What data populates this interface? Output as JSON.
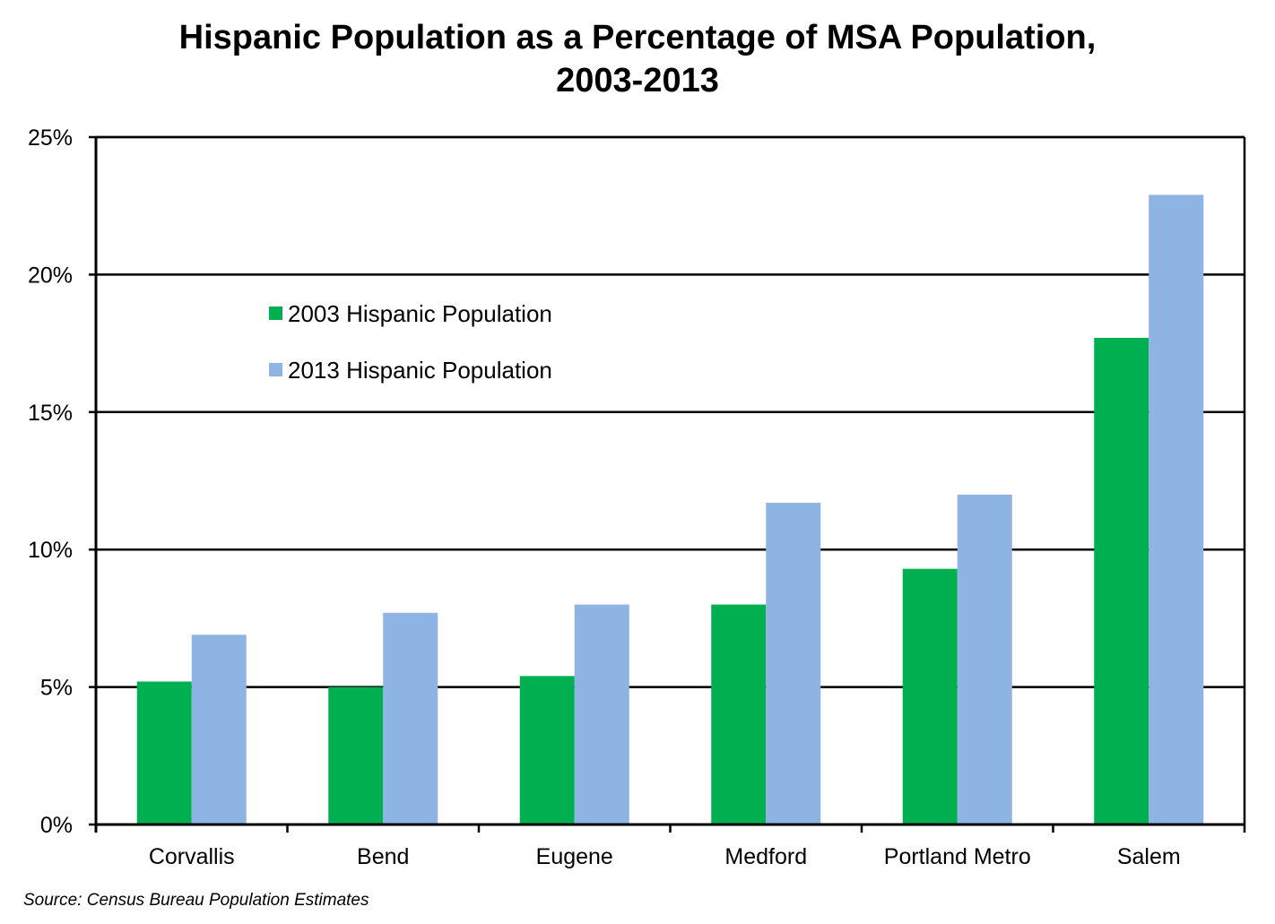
{
  "chart_data": {
    "type": "bar",
    "title_line1": "Hispanic Population as a Percentage of MSA Population,",
    "title_line2": "2003-2013",
    "categories": [
      "Corvallis",
      "Bend",
      "Eugene",
      "Medford",
      "Portland Metro",
      "Salem"
    ],
    "series": [
      {
        "name": "2003 Hispanic Population",
        "color": "#00B050",
        "values": [
          5.2,
          5.0,
          5.4,
          8.0,
          9.3,
          17.7
        ]
      },
      {
        "name": "2013 Hispanic Population",
        "color": "#8EB4E3",
        "values": [
          6.9,
          7.7,
          8.0,
          11.7,
          12.0,
          22.9
        ]
      }
    ],
    "ylim": [
      0,
      25
    ],
    "yticks": [
      "0%",
      "5%",
      "10%",
      "15%",
      "20%",
      "25%"
    ],
    "grid": true,
    "legend": "upper-left inside plot",
    "source": "Source: Census Bureau Population Estimates"
  }
}
